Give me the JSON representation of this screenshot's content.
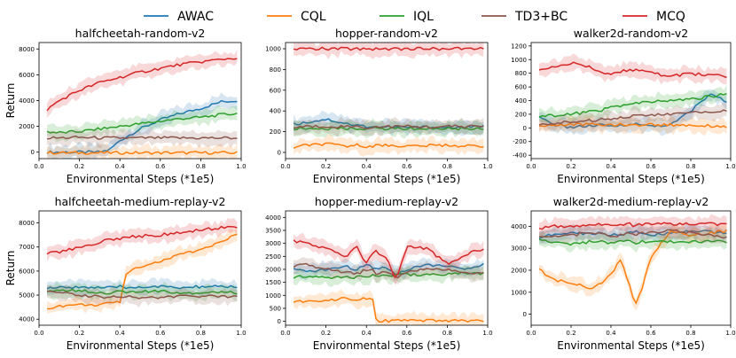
{
  "legend": [
    {
      "name": "AWAC",
      "color": "#1f77b4"
    },
    {
      "name": "CQL",
      "color": "#ff7f0e"
    },
    {
      "name": "IQL",
      "color": "#2ca02c"
    },
    {
      "name": "TD3+BC",
      "color": "#8c564b"
    },
    {
      "name": "MCQ",
      "color": "#d62728"
    }
  ],
  "chart_data": [
    {
      "type": "line",
      "title": "halfcheetah-random-v2",
      "xlabel": "Environmental Steps (*1e5)",
      "ylabel": "Return",
      "xlim": [
        0,
        1.0
      ],
      "ylim": [
        -500,
        8500
      ],
      "xticks": [
        "0.0",
        "0.2",
        "0.4",
        "0.6",
        "0.8",
        "1.0"
      ],
      "yticks": [
        0,
        2000,
        4000,
        6000,
        8000
      ],
      "x": [
        0.04,
        0.1,
        0.2,
        0.3,
        0.35,
        0.4,
        0.5,
        0.6,
        0.7,
        0.8,
        0.9,
        0.98
      ],
      "series": [
        {
          "name": "AWAC",
          "values": [
            0,
            0,
            0,
            0,
            200,
            900,
            1800,
            2500,
            3000,
            3400,
            3900,
            4000
          ]
        },
        {
          "name": "CQL",
          "values": [
            -50,
            -50,
            -50,
            -50,
            -50,
            -50,
            -50,
            -50,
            -50,
            -50,
            -50,
            -50
          ]
        },
        {
          "name": "IQL",
          "values": [
            1600,
            1500,
            1600,
            1800,
            1900,
            2000,
            2200,
            2400,
            2600,
            2700,
            2900,
            3000
          ]
        },
        {
          "name": "TD3+BC",
          "values": [
            1100,
            1100,
            1150,
            1100,
            1100,
            1100,
            1100,
            1100,
            1100,
            1100,
            1100,
            1100
          ]
        },
        {
          "name": "MCQ",
          "values": [
            3300,
            4000,
            4800,
            5400,
            5600,
            5800,
            6200,
            6500,
            6800,
            7000,
            7200,
            7300
          ]
        }
      ]
    },
    {
      "type": "line",
      "title": "hopper-random-v2",
      "xlabel": "Environmental Steps (*1e5)",
      "ylabel": "",
      "xlim": [
        0,
        1.0
      ],
      "ylim": [
        -60,
        1060
      ],
      "xticks": [
        "0.0",
        "0.2",
        "0.4",
        "0.6",
        "0.8",
        "1.0"
      ],
      "yticks": [
        0,
        200,
        400,
        600,
        800,
        1000
      ],
      "x": [
        0.04,
        0.1,
        0.2,
        0.3,
        0.35,
        0.4,
        0.5,
        0.6,
        0.7,
        0.8,
        0.9,
        0.98
      ],
      "series": [
        {
          "name": "AWAC",
          "values": [
            270,
            290,
            320,
            280,
            260,
            250,
            245,
            240,
            245,
            240,
            240,
            250
          ]
        },
        {
          "name": "CQL",
          "values": [
            40,
            70,
            80,
            60,
            70,
            60,
            70,
            60,
            65,
            70,
            60,
            65
          ]
        },
        {
          "name": "IQL",
          "values": [
            230,
            230,
            230,
            230,
            230,
            230,
            230,
            230,
            230,
            230,
            230,
            230
          ]
        },
        {
          "name": "TD3+BC",
          "values": [
            240,
            250,
            250,
            250,
            250,
            240,
            250,
            250,
            245,
            250,
            250,
            255
          ]
        },
        {
          "name": "MCQ",
          "values": [
            1000,
            1000,
            1000,
            1000,
            1000,
            1000,
            1000,
            1000,
            1000,
            1000,
            1000,
            1000
          ]
        }
      ]
    },
    {
      "type": "line",
      "title": "walker2d-random-v2",
      "xlabel": "Environmental Steps (*1e5)",
      "ylabel": "",
      "xlim": [
        0,
        1.0
      ],
      "ylim": [
        -450,
        1250
      ],
      "xticks": [
        "0.0",
        "0.2",
        "0.4",
        "0.6",
        "0.8",
        "1.0"
      ],
      "yticks": [
        -400,
        -200,
        0,
        200,
        400,
        600,
        800,
        1000,
        1200
      ],
      "x": [
        0.04,
        0.1,
        0.2,
        0.3,
        0.35,
        0.4,
        0.5,
        0.6,
        0.7,
        0.8,
        0.9,
        0.98
      ],
      "series": [
        {
          "name": "AWAC",
          "values": [
            150,
            60,
            10,
            30,
            40,
            20,
            60,
            30,
            40,
            250,
            500,
            380
          ]
        },
        {
          "name": "CQL",
          "values": [
            30,
            40,
            50,
            50,
            40,
            50,
            40,
            50,
            45,
            40,
            30,
            20
          ]
        },
        {
          "name": "IQL",
          "values": [
            170,
            180,
            200,
            240,
            260,
            300,
            350,
            380,
            400,
            420,
            460,
            500
          ]
        },
        {
          "name": "TD3+BC",
          "values": [
            40,
            60,
            90,
            110,
            120,
            140,
            170,
            190,
            200,
            220,
            240,
            250
          ]
        },
        {
          "name": "MCQ",
          "values": [
            850,
            900,
            950,
            880,
            820,
            780,
            860,
            800,
            760,
            790,
            780,
            750
          ]
        }
      ]
    },
    {
      "type": "line",
      "title": "halfcheetah-medium-replay-v2",
      "xlabel": "Environmental Steps (*1e5)",
      "ylabel": "Return",
      "xlim": [
        0,
        1.0
      ],
      "ylim": [
        3750,
        8500
      ],
      "xticks": [
        "0.0",
        "0.2",
        "0.4",
        "0.6",
        "0.8",
        "1.0"
      ],
      "yticks": [
        4000,
        5000,
        6000,
        7000,
        8000
      ],
      "x": [
        0.04,
        0.1,
        0.2,
        0.3,
        0.35,
        0.4,
        0.43,
        0.5,
        0.6,
        0.7,
        0.8,
        0.9,
        0.98
      ],
      "series": [
        {
          "name": "AWAC",
          "values": [
            5300,
            5300,
            5350,
            5300,
            5300,
            5350,
            5300,
            5350,
            5350,
            5300,
            5350,
            5350,
            5350
          ]
        },
        {
          "name": "CQL",
          "values": [
            4450,
            4550,
            4600,
            4600,
            4650,
            4700,
            5900,
            6200,
            6400,
            6700,
            6900,
            7200,
            7550
          ]
        },
        {
          "name": "IQL",
          "values": [
            5150,
            5200,
            5200,
            5100,
            5100,
            5150,
            5100,
            5150,
            5150,
            5100,
            5100,
            5150,
            5100
          ]
        },
        {
          "name": "TD3+BC",
          "values": [
            5200,
            5150,
            5000,
            4950,
            4900,
            4950,
            4950,
            4900,
            4900,
            4950,
            4950,
            4950,
            4950
          ]
        },
        {
          "name": "MCQ",
          "values": [
            6750,
            6800,
            7000,
            7200,
            7300,
            7350,
            7400,
            7450,
            7500,
            7600,
            7700,
            7800,
            7850
          ]
        }
      ]
    },
    {
      "type": "line",
      "title": "hopper-medium-replay-v2",
      "xlabel": "Environmental Steps (*1e5)",
      "ylabel": "",
      "xlim": [
        0,
        1.0
      ],
      "ylim": [
        -150,
        4250
      ],
      "xticks": [
        "0.0",
        "0.2",
        "0.4",
        "0.6",
        "0.8",
        "1.0"
      ],
      "yticks": [
        0,
        500,
        1000,
        1500,
        2000,
        2500,
        3000,
        3500,
        4000
      ],
      "x": [
        0.04,
        0.1,
        0.2,
        0.3,
        0.35,
        0.4,
        0.43,
        0.45,
        0.5,
        0.55,
        0.6,
        0.7,
        0.8,
        0.9,
        0.98
      ],
      "series": [
        {
          "name": "AWAC",
          "values": [
            2000,
            1900,
            2000,
            2100,
            2000,
            2200,
            2100,
            2000,
            2100,
            1800,
            2000,
            2200,
            2100,
            2000,
            2200
          ]
        },
        {
          "name": "CQL",
          "values": [
            700,
            800,
            800,
            900,
            850,
            900,
            900,
            20,
            20,
            20,
            20,
            20,
            20,
            20,
            20
          ]
        },
        {
          "name": "IQL",
          "values": [
            1700,
            1750,
            1700,
            1700,
            1700,
            1750,
            1750,
            1750,
            1750,
            1800,
            1800,
            1800,
            1800,
            1850,
            1850
          ]
        },
        {
          "name": "TD3+BC",
          "values": [
            2100,
            2200,
            2000,
            1900,
            1800,
            2000,
            2000,
            1800,
            1900,
            1700,
            1900,
            2000,
            2000,
            1900,
            1800
          ]
        },
        {
          "name": "MCQ",
          "values": [
            3100,
            3000,
            2800,
            2500,
            2900,
            2200,
            2600,
            2700,
            2400,
            1600,
            2900,
            2800,
            2200,
            2600,
            2800
          ]
        }
      ]
    },
    {
      "type": "line",
      "title": "walker2d-medium-replay-v2",
      "xlabel": "Environmental Steps (*1e5)",
      "ylabel": "",
      "xlim": [
        0,
        1.0
      ],
      "ylim": [
        -500,
        4700
      ],
      "xticks": [
        "0.0",
        "0.2",
        "0.4",
        "0.6",
        "0.8",
        "1.0"
      ],
      "yticks": [
        0,
        1000,
        2000,
        3000,
        4000
      ],
      "x": [
        0.04,
        0.1,
        0.2,
        0.3,
        0.35,
        0.4,
        0.45,
        0.5,
        0.52,
        0.55,
        0.6,
        0.7,
        0.8,
        0.9,
        0.98
      ],
      "series": [
        {
          "name": "AWAC",
          "values": [
            3500,
            3600,
            3700,
            3650,
            3700,
            3600,
            3650,
            3700,
            3750,
            3700,
            3600,
            3700,
            3800,
            3750,
            3700
          ]
        },
        {
          "name": "CQL",
          "values": [
            2100,
            1600,
            1400,
            1200,
            1400,
            1800,
            2500,
            1100,
            400,
            1000,
            2600,
            3800,
            3600,
            3700,
            3800
          ]
        },
        {
          "name": "IQL",
          "values": [
            3400,
            3300,
            3200,
            3300,
            3300,
            3200,
            3300,
            3300,
            3200,
            3300,
            3300,
            3300,
            3300,
            3300,
            3300
          ]
        },
        {
          "name": "TD3+BC",
          "values": [
            3600,
            3500,
            3600,
            3700,
            3700,
            3500,
            3600,
            3700,
            3600,
            3700,
            3700,
            3800,
            3700,
            3600,
            3500
          ]
        },
        {
          "name": "MCQ",
          "values": [
            3900,
            4000,
            4000,
            4100,
            4100,
            4000,
            4100,
            4100,
            4000,
            4100,
            4100,
            4100,
            4100,
            4100,
            4100
          ]
        }
      ]
    }
  ]
}
